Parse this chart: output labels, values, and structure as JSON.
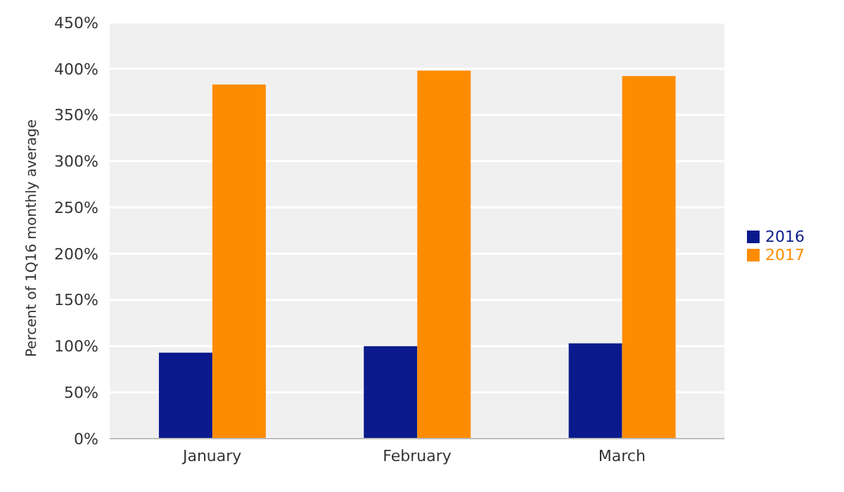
{
  "chart_data": {
    "type": "bar",
    "ylabel": "Percent of 1Q16 monthly average",
    "categories": [
      "January",
      "February",
      "March"
    ],
    "series": [
      {
        "name": "2016",
        "color": "#0a1a8c",
        "values": [
          93,
          100,
          103
        ]
      },
      {
        "name": "2017",
        "color": "#ff8c00",
        "values": [
          383,
          398,
          392
        ]
      }
    ],
    "ylim": [
      0,
      450
    ],
    "yticks": [
      {
        "value": 0,
        "label": "0%"
      },
      {
        "value": 50,
        "label": "50%"
      },
      {
        "value": 100,
        "label": "100%"
      },
      {
        "value": 150,
        "label": "150%"
      },
      {
        "value": 200,
        "label": "200%"
      },
      {
        "value": 250,
        "label": "250%"
      },
      {
        "value": 300,
        "label": "300%"
      },
      {
        "value": 350,
        "label": "350%"
      },
      {
        "value": 400,
        "label": "400%"
      },
      {
        "value": 450,
        "label": "450%"
      }
    ],
    "grid": "y",
    "legend": "right"
  }
}
